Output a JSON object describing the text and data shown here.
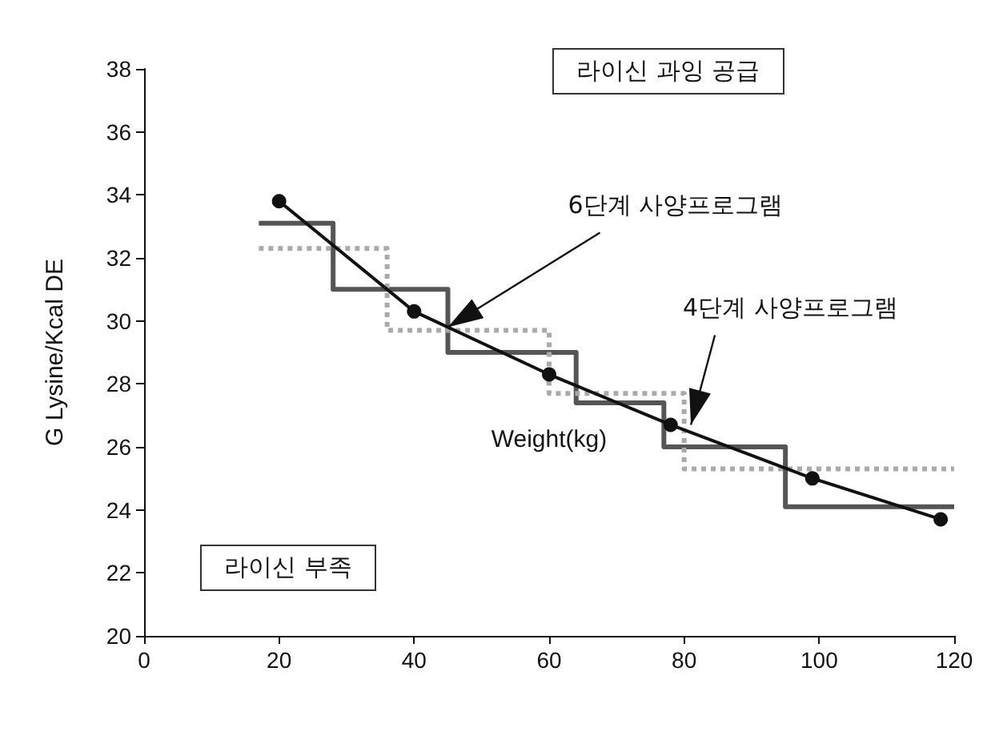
{
  "chart_data": {
    "type": "line",
    "xlabel": "Weight(kg)",
    "ylabel": "G Lysine/Kcal DE",
    "xlim": [
      0,
      120
    ],
    "xticks": [
      0,
      20,
      40,
      60,
      80,
      100,
      120
    ],
    "ylim": [
      20,
      38
    ],
    "yticks": [
      20,
      22,
      24,
      26,
      28,
      30,
      32,
      34,
      36,
      38
    ],
    "grid": false,
    "series": [
      {
        "color": "#111111",
        "marker": "circle",
        "line_style": "solid",
        "x": [
          20,
          40,
          60,
          78,
          99,
          118
        ],
        "values": [
          33.8,
          30.3,
          28.3,
          26.7,
          25.0,
          23.7
        ]
      },
      {
        "type": "step",
        "color": "#555555",
        "marker": "none",
        "line_style": "solid",
        "x": [
          17,
          28,
          45,
          64,
          77,
          95,
          120
        ],
        "values": [
          33.1,
          31.0,
          29.0,
          27.4,
          26.0,
          24.1,
          24.1
        ]
      },
      {
        "type": "step",
        "color": "#aaaaaa",
        "marker": "none",
        "line_style": "dotted",
        "x": [
          17,
          36,
          60,
          80,
          120
        ],
        "values": [
          32.3,
          29.7,
          27.7,
          25.3,
          25.3
        ]
      }
    ],
    "annotations": [
      "라이신 과잉 공급",
      "라이신 부족",
      {
        "text": "6단계 사양프로그램",
        "x": 45,
        "y": 29.8
      },
      {
        "text": "4단계 사양프로그램",
        "x": 81,
        "y": 26.7
      }
    ]
  }
}
